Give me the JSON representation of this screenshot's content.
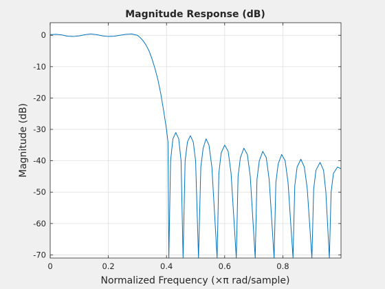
{
  "chart_data": {
    "type": "line",
    "title": "Magnitude Response (dB)",
    "xlabel": "Normalized Frequency  (×π rad/sample)",
    "ylabel": "Magnitude (dB)",
    "xlim": [
      0,
      1
    ],
    "ylim": [
      -71,
      4
    ],
    "xticks": [
      0,
      0.2,
      0.4,
      0.6,
      0.8
    ],
    "xtick_labels": [
      "0",
      "0.2",
      "0.4",
      "0.6",
      "0.8"
    ],
    "yticks": [
      0,
      -10,
      -20,
      -30,
      -40,
      -50,
      -60,
      -70
    ],
    "ytick_labels": [
      "0",
      "-10",
      "-20",
      "-30",
      "-40",
      "-50",
      "-60",
      "-70"
    ],
    "grid": true,
    "line_color": "#0072bd",
    "series": [
      {
        "points": [
          [
            0.0,
            0.2
          ],
          [
            0.02,
            0.3
          ],
          [
            0.04,
            0.1
          ],
          [
            0.06,
            -0.3
          ],
          [
            0.08,
            -0.4
          ],
          [
            0.1,
            -0.2
          ],
          [
            0.12,
            0.2
          ],
          [
            0.14,
            0.4
          ],
          [
            0.16,
            0.2
          ],
          [
            0.18,
            -0.2
          ],
          [
            0.2,
            -0.4
          ],
          [
            0.22,
            -0.3
          ],
          [
            0.24,
            0.0
          ],
          [
            0.26,
            0.3
          ],
          [
            0.28,
            0.4
          ],
          [
            0.3,
            0.0
          ],
          [
            0.31,
            -0.8
          ],
          [
            0.32,
            -1.8
          ],
          [
            0.33,
            -3.2
          ],
          [
            0.34,
            -5.0
          ],
          [
            0.35,
            -7.5
          ],
          [
            0.36,
            -10.5
          ],
          [
            0.37,
            -14.0
          ],
          [
            0.38,
            -18.5
          ],
          [
            0.39,
            -24.0
          ],
          [
            0.4,
            -30.0
          ],
          [
            0.405,
            -34.0
          ],
          [
            0.408,
            -71.0
          ],
          [
            0.414,
            -40.0
          ],
          [
            0.422,
            -33.0
          ],
          [
            0.432,
            -31.0
          ],
          [
            0.442,
            -33.0
          ],
          [
            0.45,
            -40.0
          ],
          [
            0.457,
            -71.0
          ],
          [
            0.464,
            -40.0
          ],
          [
            0.472,
            -34.0
          ],
          [
            0.482,
            -32.0
          ],
          [
            0.492,
            -34.0
          ],
          [
            0.5,
            -40.0
          ],
          [
            0.51,
            -71.0
          ],
          [
            0.518,
            -42.0
          ],
          [
            0.526,
            -36.0
          ],
          [
            0.536,
            -33.0
          ],
          [
            0.546,
            -35.0
          ],
          [
            0.556,
            -42.0
          ],
          [
            0.574,
            -71.0
          ],
          [
            0.58,
            -44.0
          ],
          [
            0.588,
            -37.5
          ],
          [
            0.6,
            -35.0
          ],
          [
            0.612,
            -37.0
          ],
          [
            0.622,
            -44.0
          ],
          [
            0.64,
            -71.0
          ],
          [
            0.646,
            -45.0
          ],
          [
            0.654,
            -39.0
          ],
          [
            0.666,
            -36.0
          ],
          [
            0.678,
            -38.0
          ],
          [
            0.688,
            -45.0
          ],
          [
            0.705,
            -71.0
          ],
          [
            0.711,
            -46.0
          ],
          [
            0.719,
            -40.0
          ],
          [
            0.731,
            -37.0
          ],
          [
            0.743,
            -39.0
          ],
          [
            0.753,
            -46.0
          ],
          [
            0.77,
            -71.0
          ],
          [
            0.776,
            -47.0
          ],
          [
            0.784,
            -41.0
          ],
          [
            0.796,
            -38.0
          ],
          [
            0.808,
            -40.0
          ],
          [
            0.818,
            -47.0
          ],
          [
            0.835,
            -71.0
          ],
          [
            0.841,
            -48.0
          ],
          [
            0.849,
            -42.0
          ],
          [
            0.862,
            -39.5
          ],
          [
            0.874,
            -42.0
          ],
          [
            0.884,
            -49.0
          ],
          [
            0.9,
            -71.0
          ],
          [
            0.906,
            -49.0
          ],
          [
            0.914,
            -43.0
          ],
          [
            0.928,
            -40.5
          ],
          [
            0.94,
            -43.0
          ],
          [
            0.948,
            -50.0
          ],
          [
            0.96,
            -71.0
          ],
          [
            0.966,
            -50.0
          ],
          [
            0.974,
            -44.0
          ],
          [
            0.988,
            -42.0
          ],
          [
            1.0,
            -42.5
          ]
        ]
      }
    ]
  }
}
